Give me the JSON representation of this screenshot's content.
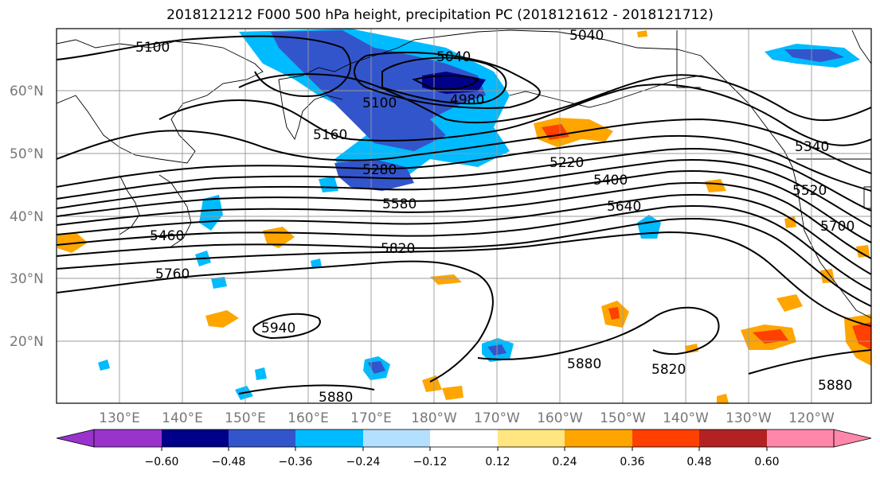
{
  "title": "2018121212 F000 500 hPa height, precipitation PC (2018121612 - 2018121712)",
  "lat_labels": [
    "60°N",
    "50°N",
    "40°N",
    "30°N",
    "20°N"
  ],
  "lon_labels": [
    "130°E",
    "140°E",
    "150°E",
    "160°E",
    "170°E",
    "180°W",
    "170°W",
    "160°W",
    "150°W",
    "140°W",
    "130°W",
    "120°W"
  ],
  "contour_labels": [
    "5100",
    "5040",
    "5040",
    "4980",
    "5100",
    "5160",
    "5280",
    "5580",
    "5220",
    "5400",
    "5640",
    "5340",
    "5520",
    "5700",
    "5460",
    "5760",
    "5820",
    "5940",
    "5880",
    "5820",
    "5880",
    "5880"
  ],
  "colorbar": {
    "ticks": [
      "−0.60",
      "−0.48",
      "−0.36",
      "−0.24",
      "−0.12",
      "0.12",
      "0.24",
      "0.36",
      "0.48",
      "0.60"
    ],
    "colors": [
      "#9933cc",
      "#000088",
      "#3355cc",
      "#00bbff",
      "#b3e0ff",
      "#ffffff",
      "#ffe680",
      "#ffa500",
      "#ff4000",
      "#b22222",
      "#ff88aa"
    ]
  }
}
